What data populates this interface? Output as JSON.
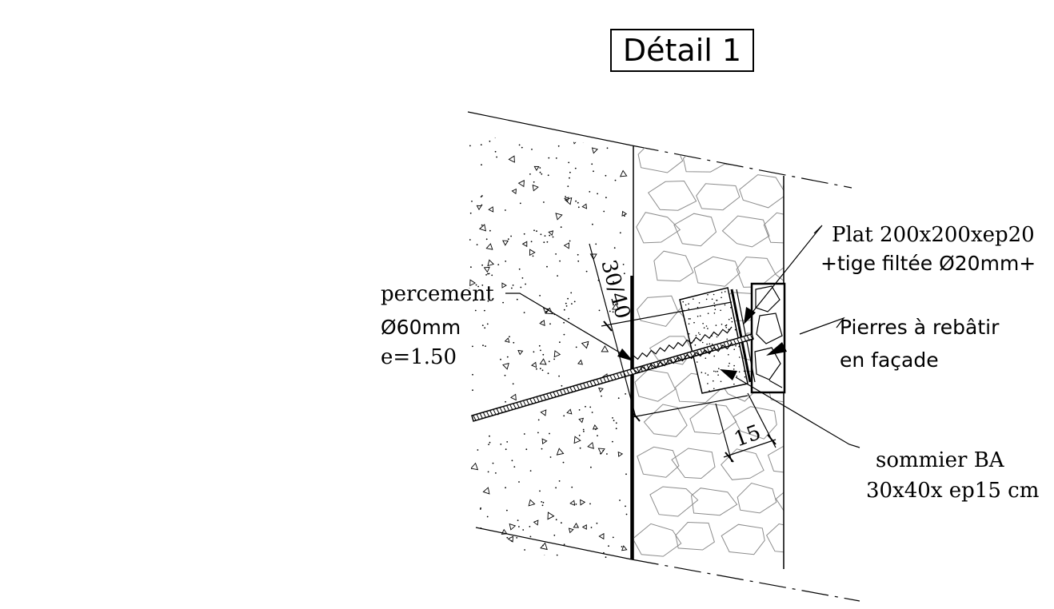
{
  "title": "Détail 1",
  "labels": {
    "percement": "percement",
    "diameter": "Ø60mm",
    "spacing": "e=1.50",
    "plat_line1": "Plat 200x200xep20",
    "plat_line2": "+tige filtée Ø20mm+",
    "pierres_line1": "Pierres à rebâtir",
    "pierres_line2": "en façade",
    "sommier_line1": "sommier BA",
    "sommier_line2": "30x40x ep15 cm"
  },
  "dimensions": {
    "beam_section": "30/40",
    "beam_depth": "15"
  }
}
